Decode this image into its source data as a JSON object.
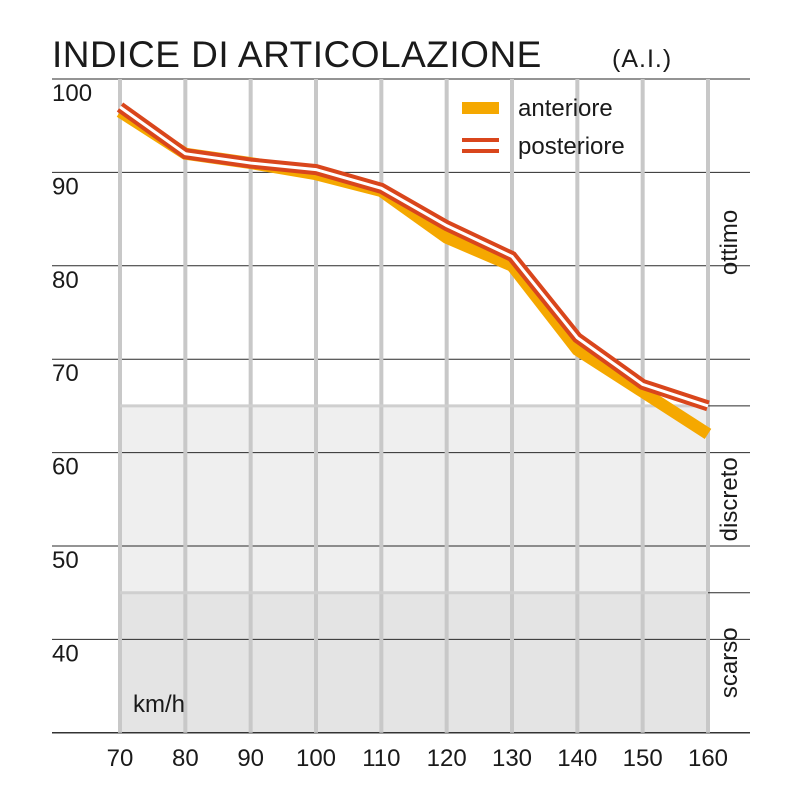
{
  "chart_data": {
    "type": "line",
    "title": "INDICE DI ARTICOLAZIONE",
    "subtitle": "(A.I.)",
    "xlabel": "km/h",
    "ylabel": "",
    "x": [
      70,
      80,
      90,
      100,
      110,
      120,
      130,
      140,
      150,
      160
    ],
    "xlim": [
      70,
      160
    ],
    "ylim": [
      30,
      100
    ],
    "yticks": [
      40,
      50,
      60,
      70,
      80,
      90,
      100
    ],
    "grid": true,
    "legend_position": "top-right",
    "series": [
      {
        "name": "anteriore",
        "color": "#f5a800",
        "values": [
          96.5,
          92,
          91,
          89.8,
          88,
          83,
          80,
          71,
          66.5,
          62
        ]
      },
      {
        "name": "posteriore",
        "color": "#d9461c",
        "values": [
          97,
          92,
          91,
          90.3,
          88.3,
          84.3,
          81,
          72.3,
          67.3,
          65
        ]
      }
    ],
    "bands": [
      {
        "label": "ottimo",
        "from": 65,
        "to": 100,
        "color": "#ffffff"
      },
      {
        "label": "discreto",
        "from": 45,
        "to": 65,
        "color": "#efefef"
      },
      {
        "label": "scarso",
        "from": 30,
        "to": 45,
        "color": "#e4e4e4"
      }
    ]
  }
}
